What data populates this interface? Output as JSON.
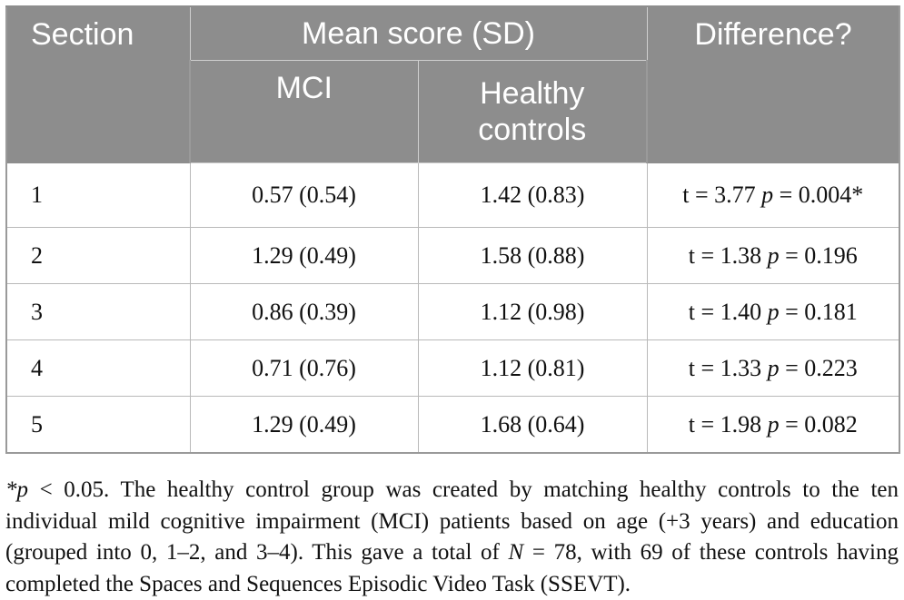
{
  "table": {
    "headers": {
      "section": "Section",
      "mean_score": "Mean score (SD)",
      "mci": "MCI",
      "healthy_line1": "Healthy",
      "healthy_line2": "controls",
      "difference": "Difference?"
    },
    "rows": [
      {
        "section": "1",
        "mci": "0.57 (0.54)",
        "hc": "1.42 (0.83)",
        "t": "t = 3.77",
        "p_label": "p",
        "p_val": " = 0.004*"
      },
      {
        "section": "2",
        "mci": "1.29 (0.49)",
        "hc": "1.58 (0.88)",
        "t": "t = 1.38",
        "p_label": "p",
        "p_val": " = 0.196"
      },
      {
        "section": "3",
        "mci": "0.86 (0.39)",
        "hc": "1.12 (0.98)",
        "t": "t = 1.40",
        "p_label": "p",
        "p_val": " = 0.181"
      },
      {
        "section": "4",
        "mci": "0.71 (0.76)",
        "hc": "1.12 (0.81)",
        "t": "t = 1.33",
        "p_label": "p",
        "p_val": " = 0.223"
      },
      {
        "section": "5",
        "mci": "1.29 (0.49)",
        "hc": "1.68 (0.64)",
        "t": "t = 1.98",
        "p_label": "p",
        "p_val": " = 0.082"
      }
    ]
  },
  "footnote": {
    "star_p": "*p",
    "part1": " < 0.05. The healthy control group was created by matching healthy controls to the ten individual mild cognitive impairment (MCI) patients based on age (+3 years) and education (grouped into 0, 1–2, and 3–4). This gave a total of ",
    "n_label": "N",
    "part2": " = 78, with 69 of these controls having completed the Spaces and Sequences Episodic Video Task (SSEVT)."
  }
}
